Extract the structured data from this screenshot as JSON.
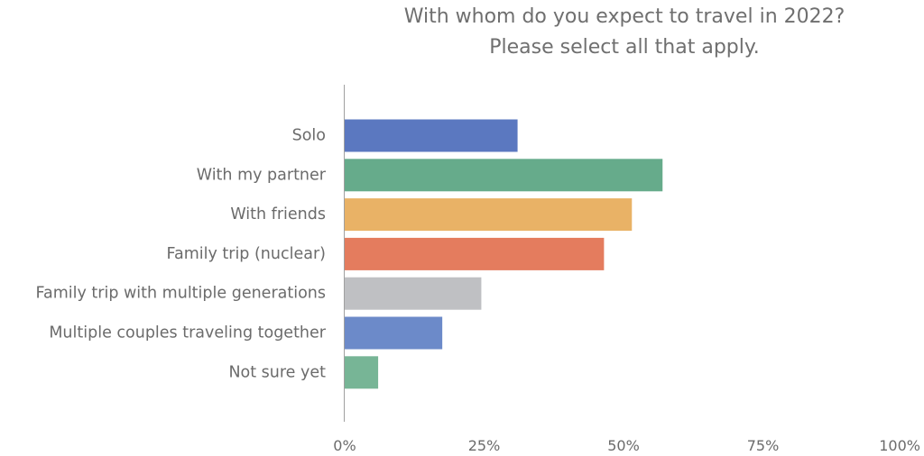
{
  "chart_data": {
    "type": "bar",
    "orientation": "horizontal",
    "title": "With whom do you expect to travel in 2022?",
    "subtitle": "Please select all that apply.",
    "categories": [
      "Solo",
      "With my partner",
      "With friends",
      "Family trip (nuclear)",
      "Family trip with multiple generations",
      "Multiple couples traveling together",
      "Not sure yet"
    ],
    "values": [
      31,
      57,
      51.5,
      46.5,
      24.5,
      17.5,
      6
    ],
    "colors": [
      "#5b78c0",
      "#66ab8b",
      "#e9b266",
      "#e47c5e",
      "#bfc0c3",
      "#6c8ac9",
      "#77b596"
    ],
    "xlim": [
      0,
      100
    ],
    "x_ticks": [
      "0%",
      "25%",
      "50%",
      "75%",
      "100%"
    ],
    "grid": false
  }
}
